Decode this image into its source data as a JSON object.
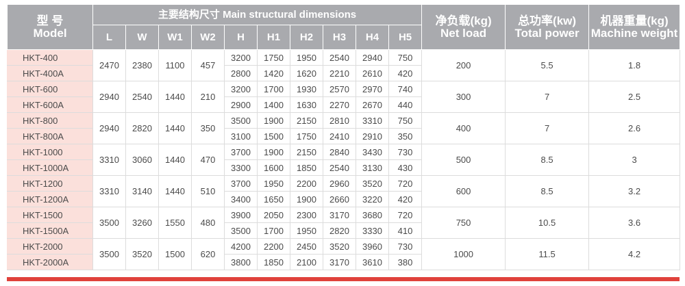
{
  "header": {
    "model_zh": "型 号",
    "model_en": "Model",
    "dims_title": "主要结构尺寸 Main structural dimensions",
    "dim_cols": [
      "L",
      "W",
      "W1",
      "W2",
      "H",
      "H1",
      "H2",
      "H3",
      "H4",
      "H5"
    ],
    "load_zh": "净负载(kg)",
    "load_en": "Net load",
    "power_zh": "总功率(kw)",
    "power_en": "Total power",
    "weight_zh": "机器重量(kg)",
    "weight_en": "Machine weight"
  },
  "groups": [
    {
      "shared": {
        "L": "2470",
        "W": "2380",
        "W1": "1100",
        "W2": "457",
        "load": "200",
        "power": "5.5",
        "weight": "1.8"
      },
      "rows": [
        {
          "model": "HKT-400",
          "H": "3200",
          "H1": "1750",
          "H2": "1950",
          "H3": "2540",
          "H4": "2940",
          "H5": "750"
        },
        {
          "model": "HKT-400A",
          "H": "2800",
          "H1": "1420",
          "H2": "1620",
          "H3": "2210",
          "H4": "2610",
          "H5": "420"
        }
      ]
    },
    {
      "shared": {
        "L": "2940",
        "W": "2540",
        "W1": "1440",
        "W2": "210",
        "load": "300",
        "power": "7",
        "weight": "2.5"
      },
      "rows": [
        {
          "model": "HKT-600",
          "H": "3200",
          "H1": "1700",
          "H2": "1930",
          "H3": "2570",
          "H4": "2970",
          "H5": "740"
        },
        {
          "model": "HKT-600A",
          "H": "2900",
          "H1": "1400",
          "H2": "1630",
          "H3": "2270",
          "H4": "2670",
          "H5": "440"
        }
      ]
    },
    {
      "shared": {
        "L": "2940",
        "W": "2820",
        "W1": "1440",
        "W2": "350",
        "load": "400",
        "power": "7",
        "weight": "2.6"
      },
      "rows": [
        {
          "model": "HKT-800",
          "H": "3500",
          "H1": "1900",
          "H2": "2150",
          "H3": "2810",
          "H4": "3310",
          "H5": "750"
        },
        {
          "model": "HKT-800A",
          "H": "3100",
          "H1": "1500",
          "H2": "1750",
          "H3": "2410",
          "H4": "2910",
          "H5": "350"
        }
      ]
    },
    {
      "shared": {
        "L": "3310",
        "W": "3060",
        "W1": "1440",
        "W2": "470",
        "load": "500",
        "power": "8.5",
        "weight": "3"
      },
      "rows": [
        {
          "model": "HKT-1000",
          "H": "3700",
          "H1": "1900",
          "H2": "2150",
          "H3": "2840",
          "H4": "3430",
          "H5": "730"
        },
        {
          "model": "HKT-1000A",
          "H": "3300",
          "H1": "1600",
          "H2": "1850",
          "H3": "2540",
          "H4": "3130",
          "H5": "430"
        }
      ]
    },
    {
      "shared": {
        "L": "3310",
        "W": "3140",
        "W1": "1440",
        "W2": "510",
        "load": "600",
        "power": "8.5",
        "weight": "3.2"
      },
      "rows": [
        {
          "model": "HKT-1200",
          "H": "3700",
          "H1": "1950",
          "H2": "2200",
          "H3": "2960",
          "H4": "3520",
          "H5": "720"
        },
        {
          "model": "HKT-1200A",
          "H": "3400",
          "H1": "1650",
          "H2": "1900",
          "H3": "2660",
          "H4": "3220",
          "H5": "420"
        }
      ]
    },
    {
      "shared": {
        "L": "3500",
        "W": "3260",
        "W1": "1550",
        "W2": "480",
        "load": "750",
        "power": "10.5",
        "weight": "3.6"
      },
      "rows": [
        {
          "model": "HKT-1500",
          "H": "3900",
          "H1": "2050",
          "H2": "2300",
          "H3": "3170",
          "H4": "3680",
          "H5": "720"
        },
        {
          "model": "HKT-1500A",
          "H": "3500",
          "H1": "1700",
          "H2": "1950",
          "H3": "2820",
          "H4": "3330",
          "H5": "410"
        }
      ]
    },
    {
      "shared": {
        "L": "3500",
        "W": "3520",
        "W1": "1500",
        "W2": "620",
        "load": "1000",
        "power": "11.5",
        "weight": "4.2"
      },
      "rows": [
        {
          "model": "HKT-2000",
          "H": "4200",
          "H1": "2200",
          "H2": "2450",
          "H3": "3520",
          "H4": "3960",
          "H5": "730"
        },
        {
          "model": "HKT-2000A",
          "H": "3800",
          "H1": "1850",
          "H2": "2100",
          "H3": "3170",
          "H4": "3610",
          "H5": "380"
        }
      ]
    }
  ],
  "theme": {
    "header_bg": "#a9aaae",
    "model_bg": "#fbe0db",
    "accent_bar": "#e0413b"
  }
}
